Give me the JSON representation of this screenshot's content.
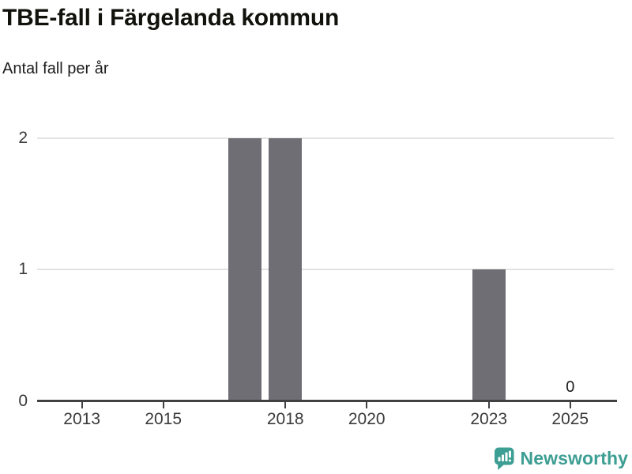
{
  "header": {
    "title": "TBE-fall i Färgelanda kommun",
    "subtitle": "Antal fall per år"
  },
  "chart_data": {
    "type": "bar",
    "title": "TBE-fall i Färgelanda kommun",
    "subtitle": "Antal fall per år",
    "xlabel": "",
    "ylabel": "Antal fall per år",
    "x": [
      2012,
      2013,
      2014,
      2015,
      2016,
      2017,
      2018,
      2019,
      2020,
      2021,
      2022,
      2023,
      2024,
      2025
    ],
    "values": [
      0,
      0,
      0,
      0,
      0,
      2,
      2,
      0,
      0,
      0,
      0,
      1,
      0,
      0
    ],
    "x_ticks": [
      2013,
      2015,
      2018,
      2020,
      2023,
      2025
    ],
    "y_ticks": [
      0,
      1,
      2
    ],
    "xlim": [
      2011.9,
      2026.15
    ],
    "ylim": [
      0,
      2.15
    ],
    "grid": "horizontal-light",
    "legend": "none",
    "bar_color": "#6e6e74",
    "annotations": [
      {
        "x": 2025,
        "value": 0,
        "label": "0"
      }
    ]
  },
  "footer": {
    "brand": "Newsworthy",
    "brand_color": "#3d9e93"
  }
}
